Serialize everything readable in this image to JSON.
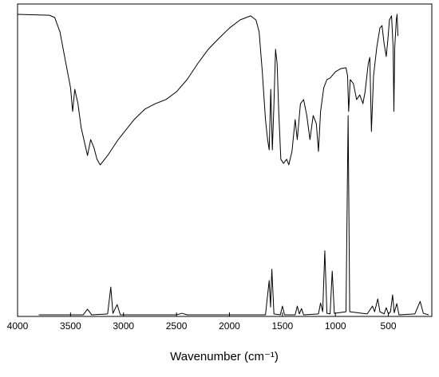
{
  "chart_data": {
    "type": "line",
    "xlabel": "Wavenumber (cm⁻¹)",
    "xlim": [
      4000,
      90
    ],
    "xticks": [
      4000,
      3500,
      3000,
      2500,
      2000,
      1500,
      1000,
      500
    ],
    "ylim": [
      0,
      100
    ],
    "series": [
      {
        "color": "#000000",
        "x": [
          4000,
          3700,
          3650,
          3600,
          3550,
          3500,
          3480,
          3460,
          3430,
          3400,
          3340,
          3310,
          3280,
          3250,
          3220,
          3150,
          3050,
          2900,
          2800,
          2700,
          2600,
          2500,
          2400,
          2300,
          2200,
          2100,
          2000,
          1900,
          1800,
          1750,
          1720,
          1690,
          1660,
          1640,
          1625,
          1610,
          1595,
          1580,
          1565,
          1550,
          1535,
          1515,
          1490,
          1460,
          1440,
          1410,
          1380,
          1360,
          1330,
          1300,
          1270,
          1240,
          1210,
          1180,
          1160,
          1140,
          1110,
          1080,
          1050,
          1000,
          950,
          900,
          885,
          875,
          860,
          830,
          800,
          770,
          740,
          720,
          690,
          675,
          660,
          640,
          610,
          580,
          560,
          540,
          520,
          505,
          490,
          470,
          455,
          448,
          440,
          425,
          418,
          410
        ],
        "values": [
          96.7,
          96.4,
          95.7,
          91.1,
          82.1,
          73.2,
          65.6,
          72.7,
          68.1,
          60.5,
          51.5,
          56.6,
          54.1,
          50.3,
          48.5,
          51.5,
          56.6,
          63.0,
          66.3,
          68.1,
          69.4,
          71.9,
          75.8,
          80.9,
          85.5,
          89.0,
          92.3,
          94.9,
          96.2,
          94.9,
          91.1,
          78.3,
          63.0,
          56.6,
          53.3,
          72.7,
          53.3,
          68.1,
          85.5,
          80.9,
          65.6,
          50.3,
          49.0,
          50.3,
          48.5,
          52.8,
          63.0,
          56.6,
          68.1,
          69.4,
          64.3,
          56.6,
          64.3,
          61.7,
          52.8,
          65.6,
          73.2,
          75.8,
          76.3,
          78.3,
          79.3,
          79.6,
          77.0,
          65.6,
          75.8,
          74.5,
          69.4,
          70.9,
          68.1,
          71.9,
          80.9,
          82.9,
          59.2,
          77.0,
          86.0,
          92.3,
          93.1,
          87.2,
          83.2,
          88.5,
          94.9,
          96.2,
          86.0,
          65.6,
          86.0,
          94.9,
          96.7,
          89.8
        ]
      },
      {
        "color": "#000000",
        "x": [
          3800,
          3380,
          3340,
          3300,
          3150,
          3120,
          3100,
          3060,
          3030,
          2500,
          2450,
          2400,
          1660,
          1625,
          1612,
          1600,
          1580,
          1520,
          1500,
          1480,
          1380,
          1360,
          1340,
          1320,
          1300,
          1160,
          1140,
          1120,
          1100,
          1080,
          1050,
          1030,
          1010,
          900,
          880,
          865,
          700,
          650,
          630,
          600,
          580,
          540,
          520,
          500,
          480,
          460,
          445,
          420,
          400,
          250,
          200,
          170,
          120
        ],
        "values": [
          0.5,
          0.5,
          2.3,
          0.5,
          0.8,
          9.4,
          1.0,
          3.8,
          0.5,
          0.5,
          1.0,
          0.5,
          0.5,
          11.5,
          3,
          15.1,
          0.8,
          0.5,
          3.3,
          0.5,
          0.5,
          3.3,
          0.8,
          2.5,
          0.5,
          0.8,
          4.3,
          1.5,
          21,
          1,
          0.8,
          14.5,
          1,
          1.5,
          64.3,
          1.5,
          0.8,
          3.3,
          1.5,
          5.6,
          1.5,
          0.8,
          2.8,
          0.8,
          1.5,
          6.9,
          1.2,
          4.1,
          0.5,
          0.8,
          4.8,
          1,
          0.5
        ]
      }
    ]
  }
}
